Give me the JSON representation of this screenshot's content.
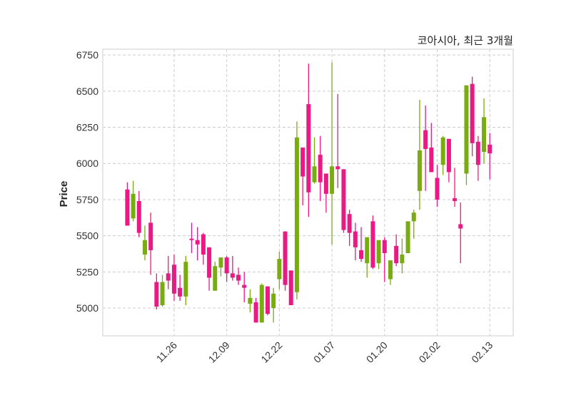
{
  "chart_data": {
    "type": "candlestick",
    "title": "코아시아, 최근 3개월",
    "xlabel": "",
    "ylabel": "Price",
    "ylim": [
      4808,
      6790
    ],
    "xlim": [
      -4.2,
      66
    ],
    "grid": true,
    "colors": {
      "up": "#78ac10",
      "down": "#ea1a85",
      "grid": "#cccccc",
      "frame": "#dddddd"
    },
    "yticks": [
      5000,
      5250,
      5500,
      5750,
      6000,
      6250,
      6500,
      6750
    ],
    "xticks": [
      {
        "index": 8,
        "label": "11.26"
      },
      {
        "index": 17,
        "label": "12.09"
      },
      {
        "index": 26,
        "label": "12.22"
      },
      {
        "index": 35,
        "label": "01.07"
      },
      {
        "index": 44,
        "label": "01.20"
      },
      {
        "index": 53,
        "label": "02.02"
      },
      {
        "index": 62,
        "label": "02.13"
      }
    ],
    "ohlc": [
      [
        5820,
        5870,
        5570,
        5570
      ],
      [
        5620,
        5880,
        5600,
        5790
      ],
      [
        5740,
        5810,
        5490,
        5520
      ],
      [
        5370,
        5570,
        5330,
        5470
      ],
      [
        5590,
        5660,
        5230,
        5400
      ],
      [
        5180,
        5240,
        4990,
        5010
      ],
      [
        5020,
        5230,
        5010,
        5180
      ],
      [
        5240,
        5360,
        5130,
        5190
      ],
      [
        5300,
        5370,
        5050,
        5100
      ],
      [
        5140,
        5230,
        5050,
        5080
      ],
      [
        5080,
        5360,
        5020,
        5320
      ],
      [
        5480,
        5590,
        5380,
        5470
      ],
      [
        5470,
        5560,
        5330,
        5440
      ],
      [
        5510,
        5520,
        5300,
        5370
      ],
      [
        5420,
        5420,
        5120,
        5210
      ],
      [
        5120,
        5320,
        5120,
        5290
      ],
      [
        5280,
        5350,
        5220,
        5350
      ],
      [
        5350,
        5360,
        5180,
        5240
      ],
      [
        5240,
        5360,
        5190,
        5210
      ],
      [
        5230,
        5280,
        5160,
        5190
      ],
      [
        5160,
        5250,
        5040,
        5140
      ],
      [
        5030,
        5130,
        4970,
        5070
      ],
      [
        5040,
        5070,
        4900,
        4900
      ],
      [
        4900,
        5170,
        4900,
        5160
      ],
      [
        5150,
        5150,
        4950,
        4960
      ],
      [
        5000,
        5140,
        4900,
        5100
      ],
      [
        5200,
        5390,
        5130,
        5340
      ],
      [
        5530,
        5530,
        5120,
        5160
      ],
      [
        5260,
        5260,
        5020,
        5020
      ],
      [
        5110,
        6290,
        5060,
        6180
      ],
      [
        6110,
        6110,
        5710,
        5910
      ],
      [
        6410,
        6690,
        5630,
        5800
      ],
      [
        5870,
        6180,
        5860,
        5980
      ],
      [
        6060,
        6190,
        5740,
        5870
      ],
      [
        5930,
        5930,
        5660,
        5790
      ],
      [
        5790,
        6700,
        5440,
        5980
      ],
      [
        5980,
        6480,
        5830,
        5960
      ],
      [
        5960,
        5960,
        5520,
        5540
      ],
      [
        5650,
        5680,
        5430,
        5520
      ],
      [
        5530,
        5590,
        5330,
        5420
      ],
      [
        5400,
        5560,
        5320,
        5340
      ],
      [
        5310,
        5490,
        5210,
        5490
      ],
      [
        5600,
        5640,
        5270,
        5280
      ],
      [
        5310,
        5470,
        5270,
        5470
      ],
      [
        5470,
        5490,
        5180,
        5380
      ],
      [
        5200,
        5330,
        5160,
        5330
      ],
      [
        5430,
        5510,
        5290,
        5310
      ],
      [
        5310,
        5480,
        5240,
        5370
      ],
      [
        5380,
        5600,
        5380,
        5600
      ],
      [
        5600,
        5680,
        5480,
        5660
      ],
      [
        5810,
        6440,
        5680,
        6090
      ],
      [
        6230,
        6400,
        5810,
        6100
      ],
      [
        6110,
        6280,
        5940,
        5940
      ],
      [
        5900,
        5990,
        5700,
        5750
      ],
      [
        5990,
        6190,
        5920,
        6180
      ],
      [
        6170,
        6170,
        5870,
        5940
      ],
      [
        5760,
        5970,
        5700,
        5740
      ],
      [
        5580,
        5730,
        5310,
        5550
      ],
      [
        5930,
        6540,
        5850,
        6540
      ],
      [
        6550,
        6600,
        6050,
        6140
      ],
      [
        6150,
        6190,
        5880,
        5990
      ],
      [
        6080,
        6450,
        6000,
        6320
      ],
      [
        6130,
        6210,
        5890,
        6070
      ]
    ]
  }
}
